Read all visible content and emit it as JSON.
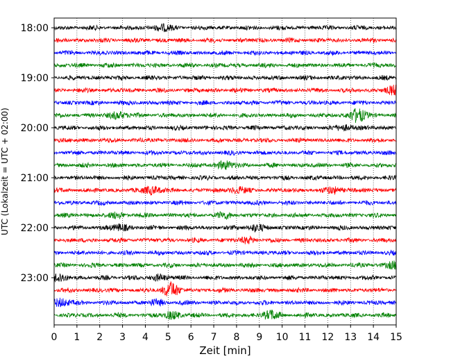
{
  "chart_data": {
    "type": "line",
    "chart_kind": "helicorder",
    "xlabel": "Zeit  [min]",
    "ylabel": "UTC (Lokalzeit = UTC + 02:00)",
    "xlim": [
      0,
      15
    ],
    "x_ticks": [
      0,
      1,
      2,
      3,
      4,
      5,
      6,
      7,
      8,
      9,
      10,
      11,
      12,
      13,
      14,
      15
    ],
    "x_tick_labels": [
      "0",
      "1",
      "2",
      "3",
      "4",
      "5",
      "6",
      "7",
      "8",
      "9",
      "10",
      "11",
      "12",
      "13",
      "14",
      "15"
    ],
    "y_tick_labels": [
      "18:00",
      "19:00",
      "20:00",
      "21:00",
      "22:00",
      "23:00"
    ],
    "vertical_gridlines": "dotted, every minute",
    "line_colors": [
      "#000000",
      "#ff0000",
      "#0000ff",
      "#008000"
    ],
    "traces": [
      {
        "start": "18:00",
        "events": [
          {
            "x": 4.7,
            "amp": 1.6
          }
        ]
      },
      {
        "start": "18:15",
        "events": []
      },
      {
        "start": "18:30",
        "events": []
      },
      {
        "start": "18:45",
        "events": []
      },
      {
        "start": "19:00",
        "events": []
      },
      {
        "start": "19:15",
        "events": [
          {
            "x": 14.9,
            "amp": 2.0
          }
        ]
      },
      {
        "start": "19:30",
        "events": []
      },
      {
        "start": "19:45",
        "events": [
          {
            "x": 2.8,
            "amp": 1.8
          },
          {
            "x": 13.3,
            "amp": 3.5
          }
        ]
      },
      {
        "start": "20:00",
        "events": [
          {
            "x": 12.8,
            "amp": 1.3
          }
        ]
      },
      {
        "start": "20:15",
        "events": []
      },
      {
        "start": "20:30",
        "events": []
      },
      {
        "start": "20:45",
        "events": [
          {
            "x": 7.5,
            "amp": 2.0
          }
        ]
      },
      {
        "start": "21:00",
        "events": []
      },
      {
        "start": "21:15",
        "events": [
          {
            "x": 4.3,
            "amp": 2.2
          },
          {
            "x": 8.0,
            "amp": 1.5
          },
          {
            "x": 12.3,
            "amp": 1.5
          }
        ]
      },
      {
        "start": "21:30",
        "events": []
      },
      {
        "start": "21:45",
        "events": [
          {
            "x": 2.8,
            "amp": 1.2
          },
          {
            "x": 7.5,
            "amp": 1.2
          }
        ]
      },
      {
        "start": "22:00",
        "events": [
          {
            "x": 2.9,
            "amp": 1.5
          },
          {
            "x": 8.8,
            "amp": 1.6
          }
        ]
      },
      {
        "start": "22:15",
        "events": [
          {
            "x": 8.5,
            "amp": 1.3
          }
        ]
      },
      {
        "start": "22:30",
        "events": []
      },
      {
        "start": "22:45",
        "events": [
          {
            "x": 14.9,
            "amp": 1.8
          }
        ]
      },
      {
        "start": "23:00",
        "events": [
          {
            "x": 0.2,
            "amp": 2.0
          },
          {
            "x": 4.6,
            "amp": 1.4
          }
        ]
      },
      {
        "start": "23:15",
        "events": [
          {
            "x": 5.1,
            "amp": 3.8
          }
        ]
      },
      {
        "start": "23:30",
        "events": [
          {
            "x": 0.3,
            "amp": 2.0
          },
          {
            "x": 4.5,
            "amp": 1.2
          }
        ]
      },
      {
        "start": "23:45",
        "events": [
          {
            "x": 5.2,
            "amp": 1.8
          },
          {
            "x": 9.5,
            "amp": 2.0
          }
        ]
      }
    ]
  }
}
